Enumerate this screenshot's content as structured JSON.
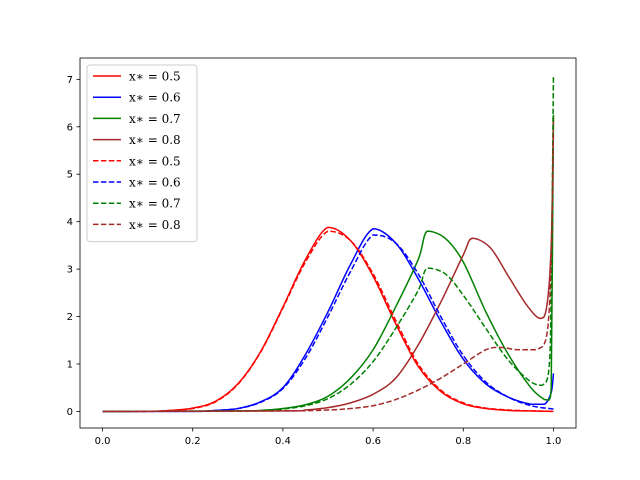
{
  "chart_data": {
    "type": "line",
    "title": "",
    "xlabel": "",
    "ylabel": "",
    "xlim": [
      -0.05,
      1.05
    ],
    "ylim": [
      -0.35,
      7.45
    ],
    "xticks": [
      "0.0",
      "0.2",
      "0.4",
      "0.6",
      "0.8",
      "1.0"
    ],
    "yticks": [
      "0",
      "1",
      "2",
      "3",
      "4",
      "5",
      "6",
      "7"
    ],
    "grid": false,
    "legend_position": "top-left",
    "series": [
      {
        "name": "x∗ = 0.5",
        "color": "#ff0000",
        "style": "solid",
        "points": [
          [
            0.0,
            0
          ],
          [
            0.1,
            0
          ],
          [
            0.15,
            0.02
          ],
          [
            0.2,
            0.07
          ],
          [
            0.25,
            0.21
          ],
          [
            0.3,
            0.58
          ],
          [
            0.35,
            1.25
          ],
          [
            0.4,
            2.2
          ],
          [
            0.45,
            3.2
          ],
          [
            0.5,
            3.88
          ],
          [
            0.55,
            3.6
          ],
          [
            0.6,
            2.85
          ],
          [
            0.65,
            1.85
          ],
          [
            0.7,
            0.95
          ],
          [
            0.75,
            0.42
          ],
          [
            0.8,
            0.16
          ],
          [
            0.85,
            0.06
          ],
          [
            0.9,
            0.02
          ],
          [
            0.95,
            0.01
          ],
          [
            1.0,
            0
          ]
        ]
      },
      {
        "name": "x∗ = 0.6",
        "color": "#0000ff",
        "style": "solid",
        "points": [
          [
            0.0,
            0
          ],
          [
            0.2,
            0
          ],
          [
            0.25,
            0.02
          ],
          [
            0.3,
            0.06
          ],
          [
            0.35,
            0.2
          ],
          [
            0.4,
            0.5
          ],
          [
            0.45,
            1.2
          ],
          [
            0.5,
            2.1
          ],
          [
            0.55,
            3.1
          ],
          [
            0.6,
            3.85
          ],
          [
            0.65,
            3.55
          ],
          [
            0.7,
            2.8
          ],
          [
            0.75,
            1.9
          ],
          [
            0.8,
            1.1
          ],
          [
            0.85,
            0.58
          ],
          [
            0.9,
            0.3
          ],
          [
            0.95,
            0.15
          ],
          [
            0.98,
            0.15
          ],
          [
            0.995,
            0.4
          ],
          [
            1.0,
            0.8
          ]
        ]
      },
      {
        "name": "x∗ = 0.7",
        "color": "#008000",
        "style": "solid",
        "points": [
          [
            0.0,
            0
          ],
          [
            0.3,
            0.01
          ],
          [
            0.35,
            0.02
          ],
          [
            0.4,
            0.06
          ],
          [
            0.45,
            0.14
          ],
          [
            0.5,
            0.32
          ],
          [
            0.55,
            0.7
          ],
          [
            0.6,
            1.3
          ],
          [
            0.65,
            2.2
          ],
          [
            0.7,
            3.2
          ],
          [
            0.72,
            3.8
          ],
          [
            0.76,
            3.65
          ],
          [
            0.8,
            3.15
          ],
          [
            0.85,
            2.1
          ],
          [
            0.9,
            1.2
          ],
          [
            0.95,
            0.5
          ],
          [
            0.98,
            0.25
          ],
          [
            0.99,
            0.24
          ],
          [
            0.995,
            0.5
          ],
          [
            1.0,
            6.25
          ]
        ]
      },
      {
        "name": "x∗ = 0.8",
        "color": "#a52a2a",
        "style": "solid",
        "points": [
          [
            0.0,
            0
          ],
          [
            0.4,
            0.01
          ],
          [
            0.45,
            0.03
          ],
          [
            0.5,
            0.08
          ],
          [
            0.55,
            0.18
          ],
          [
            0.6,
            0.36
          ],
          [
            0.65,
            0.7
          ],
          [
            0.7,
            1.4
          ],
          [
            0.75,
            2.3
          ],
          [
            0.8,
            3.3
          ],
          [
            0.82,
            3.65
          ],
          [
            0.86,
            3.45
          ],
          [
            0.9,
            2.85
          ],
          [
            0.94,
            2.25
          ],
          [
            0.97,
            1.96
          ],
          [
            0.985,
            2.2
          ],
          [
            0.995,
            3.5
          ],
          [
            1.0,
            6.2
          ]
        ]
      },
      {
        "name": "x∗ = 0.5",
        "color": "#ff0000",
        "style": "dashed",
        "points": [
          [
            0.0,
            0
          ],
          [
            0.1,
            0
          ],
          [
            0.15,
            0.02
          ],
          [
            0.2,
            0.06
          ],
          [
            0.25,
            0.2
          ],
          [
            0.3,
            0.57
          ],
          [
            0.35,
            1.24
          ],
          [
            0.4,
            2.18
          ],
          [
            0.45,
            3.15
          ],
          [
            0.5,
            3.8
          ],
          [
            0.55,
            3.6
          ],
          [
            0.6,
            2.9
          ],
          [
            0.65,
            1.92
          ],
          [
            0.7,
            1.0
          ],
          [
            0.75,
            0.45
          ],
          [
            0.8,
            0.18
          ],
          [
            0.85,
            0.07
          ],
          [
            0.9,
            0.03
          ],
          [
            0.95,
            0.01
          ],
          [
            1.0,
            0
          ]
        ]
      },
      {
        "name": "x∗ = 0.6",
        "color": "#0000ff",
        "style": "dashed",
        "points": [
          [
            0.0,
            0
          ],
          [
            0.2,
            0
          ],
          [
            0.25,
            0.02
          ],
          [
            0.3,
            0.06
          ],
          [
            0.35,
            0.19
          ],
          [
            0.4,
            0.48
          ],
          [
            0.45,
            1.12
          ],
          [
            0.5,
            2.0
          ],
          [
            0.55,
            2.95
          ],
          [
            0.6,
            3.72
          ],
          [
            0.65,
            3.55
          ],
          [
            0.7,
            2.9
          ],
          [
            0.75,
            2.0
          ],
          [
            0.8,
            1.18
          ],
          [
            0.85,
            0.62
          ],
          [
            0.9,
            0.3
          ],
          [
            0.95,
            0.12
          ],
          [
            1.0,
            0.05
          ]
        ]
      },
      {
        "name": "x∗ = 0.7",
        "color": "#008000",
        "style": "dashed",
        "points": [
          [
            0.0,
            0
          ],
          [
            0.3,
            0.01
          ],
          [
            0.35,
            0.02
          ],
          [
            0.4,
            0.05
          ],
          [
            0.45,
            0.12
          ],
          [
            0.5,
            0.27
          ],
          [
            0.55,
            0.57
          ],
          [
            0.6,
            1.05
          ],
          [
            0.65,
            1.75
          ],
          [
            0.7,
            2.55
          ],
          [
            0.72,
            3.02
          ],
          [
            0.76,
            2.9
          ],
          [
            0.8,
            2.45
          ],
          [
            0.85,
            1.75
          ],
          [
            0.9,
            1.08
          ],
          [
            0.95,
            0.62
          ],
          [
            0.975,
            0.55
          ],
          [
            0.99,
            0.9
          ],
          [
            0.995,
            2.5
          ],
          [
            1.0,
            7.1
          ]
        ]
      },
      {
        "name": "x∗ = 0.8",
        "color": "#a52a2a",
        "style": "dashed",
        "points": [
          [
            0.0,
            0
          ],
          [
            0.4,
            0.01
          ],
          [
            0.5,
            0.03
          ],
          [
            0.55,
            0.06
          ],
          [
            0.6,
            0.12
          ],
          [
            0.65,
            0.25
          ],
          [
            0.7,
            0.45
          ],
          [
            0.75,
            0.7
          ],
          [
            0.8,
            1.0
          ],
          [
            0.85,
            1.3
          ],
          [
            0.88,
            1.35
          ],
          [
            0.92,
            1.3
          ],
          [
            0.96,
            1.3
          ],
          [
            0.985,
            1.6
          ],
          [
            0.995,
            3.2
          ],
          [
            1.0,
            5.9
          ]
        ]
      }
    ]
  }
}
